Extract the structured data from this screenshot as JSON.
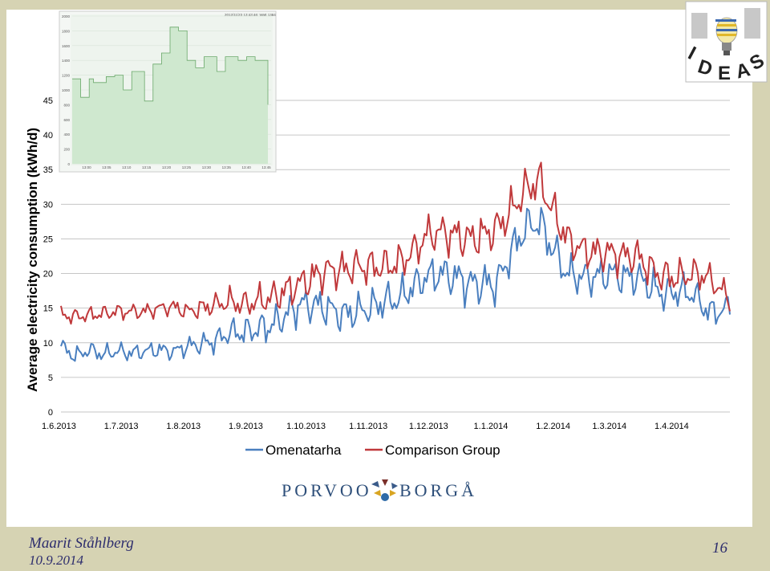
{
  "slide": {
    "author": "Maarit Ståhlberg",
    "date": "10.9.2014",
    "page_number": "16"
  },
  "logos": {
    "porvoo_left": "PORVOO",
    "porvoo_right": "BORGÅ",
    "ideas": "IDEAS"
  },
  "colors": {
    "omenatarha": "#4a7fbf",
    "comparison": "#c0393b",
    "inset_fill": "#cfe8cf",
    "inset_line": "#6aa86a"
  },
  "chart_data": {
    "type": "line",
    "ylabel": "Average electricity consumption (kWh/d)",
    "xlabel": "",
    "ylim": [
      0,
      45
    ],
    "yticks": [
      0,
      5,
      10,
      15,
      20,
      25,
      30,
      35,
      40,
      45
    ],
    "grid": "horizontal",
    "legend_position": "bottom",
    "x_tick_labels": [
      "1.6.2013",
      "1.7.2013",
      "1.8.2013",
      "1.9.2013",
      "1.10.2013",
      "1.11.2013",
      "1.12.2013",
      "1.1.2014",
      "1.2.2014",
      "1.3.2014",
      "1.4.2014"
    ],
    "x_tick_days": [
      0,
      30,
      61,
      92,
      122,
      153,
      183,
      214,
      245,
      273,
      304
    ],
    "x_end_day": 333,
    "series": [
      {
        "name": "Omenatarha",
        "color": "#4a7fbf",
        "points": [
          [
            0,
            9.5
          ],
          [
            7,
            8
          ],
          [
            14,
            9
          ],
          [
            21,
            8.3
          ],
          [
            28,
            8.8
          ],
          [
            35,
            8.5
          ],
          [
            42,
            8.8
          ],
          [
            49,
            9
          ],
          [
            56,
            8.7
          ],
          [
            63,
            9.5
          ],
          [
            70,
            9.8
          ],
          [
            77,
            10.3
          ],
          [
            84,
            11.5
          ],
          [
            91,
            11.5
          ],
          [
            98,
            12
          ],
          [
            105,
            12.5
          ],
          [
            112,
            14
          ],
          [
            119,
            15.5
          ],
          [
            126,
            15.5
          ],
          [
            133,
            15
          ],
          [
            140,
            14
          ],
          [
            147,
            14.5
          ],
          [
            154,
            15
          ],
          [
            161,
            16
          ],
          [
            168,
            16.3
          ],
          [
            175,
            18
          ],
          [
            182,
            19.5
          ],
          [
            189,
            20
          ],
          [
            196,
            19.5
          ],
          [
            203,
            18.5
          ],
          [
            210,
            18.5
          ],
          [
            217,
            18.5
          ],
          [
            224,
            23
          ],
          [
            231,
            26.5
          ],
          [
            238,
            27.5
          ],
          [
            245,
            23.5
          ],
          [
            252,
            20
          ],
          [
            259,
            19.5
          ],
          [
            266,
            19.5
          ],
          [
            273,
            20
          ],
          [
            280,
            19.5
          ],
          [
            287,
            19.5
          ],
          [
            294,
            18
          ],
          [
            301,
            17
          ],
          [
            308,
            17.5
          ],
          [
            315,
            17
          ],
          [
            322,
            14.5
          ],
          [
            329,
            14.5
          ],
          [
            333,
            15.5
          ]
        ],
        "amplitude": [
          1.4,
          1.4,
          1.4,
          1.4,
          1.4,
          1.4,
          1.4,
          1.4,
          1.4,
          1.6,
          1.8,
          2.0,
          2.2,
          2.4,
          2.6,
          2.8,
          3.0,
          3.0,
          3.0,
          3.0,
          3.0,
          3.0,
          3.0,
          3.0,
          3.0,
          3.0,
          3.0,
          3.2,
          3.4,
          3.4,
          3.4,
          3.4,
          3.4,
          3.4,
          3.4,
          3.4,
          3.0,
          3.0,
          3.0,
          3.0,
          3.0,
          3.0,
          3.0,
          3.0,
          2.8,
          2.6,
          2.4,
          2.2,
          2.2
        ]
      },
      {
        "name": "Comparison Group",
        "color": "#c0393b",
        "points": [
          [
            0,
            14
          ],
          [
            7,
            13.8
          ],
          [
            14,
            14
          ],
          [
            21,
            14.2
          ],
          [
            28,
            14.5
          ],
          [
            35,
            14.5
          ],
          [
            42,
            14.5
          ],
          [
            49,
            15
          ],
          [
            56,
            15.2
          ],
          [
            63,
            14.5
          ],
          [
            70,
            15
          ],
          [
            77,
            15.5
          ],
          [
            84,
            16
          ],
          [
            91,
            15.5
          ],
          [
            98,
            16
          ],
          [
            105,
            16.5
          ],
          [
            112,
            17.5
          ],
          [
            119,
            18.5
          ],
          [
            126,
            19.5
          ],
          [
            133,
            20.5
          ],
          [
            140,
            20.5
          ],
          [
            147,
            21
          ],
          [
            154,
            21
          ],
          [
            161,
            21
          ],
          [
            168,
            21.5
          ],
          [
            175,
            23
          ],
          [
            182,
            25.5
          ],
          [
            189,
            26
          ],
          [
            196,
            25.5
          ],
          [
            203,
            25
          ],
          [
            210,
            25.5
          ],
          [
            217,
            26.5
          ],
          [
            224,
            29
          ],
          [
            231,
            32
          ],
          [
            238,
            33.5
          ],
          [
            245,
            29
          ],
          [
            252,
            25
          ],
          [
            259,
            23.5
          ],
          [
            266,
            23
          ],
          [
            273,
            23
          ],
          [
            280,
            22.5
          ],
          [
            287,
            22.5
          ],
          [
            294,
            20.5
          ],
          [
            301,
            19.5
          ],
          [
            308,
            19.5
          ],
          [
            315,
            20
          ],
          [
            322,
            19.5
          ],
          [
            329,
            17.5
          ],
          [
            333,
            16.5
          ]
        ],
        "amplitude": [
          1.3,
          1.3,
          1.3,
          1.3,
          1.3,
          1.3,
          1.3,
          1.3,
          1.3,
          1.5,
          1.7,
          1.9,
          2.1,
          2.3,
          2.5,
          2.7,
          2.9,
          3.0,
          3.0,
          3.0,
          3.0,
          3.0,
          3.0,
          3.0,
          3.0,
          3.0,
          3.0,
          3.2,
          3.4,
          3.4,
          3.4,
          3.4,
          3.4,
          3.4,
          3.4,
          3.4,
          3.0,
          3.0,
          3.0,
          3.0,
          3.0,
          3.0,
          3.0,
          3.0,
          2.8,
          2.6,
          2.4,
          2.2,
          2.2
        ]
      }
    ]
  },
  "inset_chart": {
    "type": "area",
    "yticks": [
      "2000",
      "1800",
      "1600",
      "1400",
      "1200",
      "1000",
      "800",
      "600",
      "400",
      "200",
      "0"
    ],
    "xticks": [
      "13:00",
      "13:05",
      "13:10",
      "13:15",
      "13:20",
      "13:25",
      "13:30",
      "13:35",
      "13:40",
      "13:45"
    ],
    "header_text": "2012/11/23 13:43:46: Watt 1384",
    "ylim": [
      0,
      2000
    ],
    "values": [
      1150,
      1150,
      900,
      900,
      1150,
      1100,
      1100,
      1100,
      1180,
      1180,
      1200,
      1200,
      1000,
      1000,
      1250,
      1250,
      1250,
      850,
      850,
      1350,
      1350,
      1500,
      1500,
      1850,
      1850,
      1800,
      1800,
      1400,
      1400,
      1300,
      1300,
      1450,
      1450,
      1450,
      1250,
      1250,
      1450,
      1450,
      1450,
      1400,
      1400,
      1450,
      1450,
      1400,
      1400,
      1400,
      800
    ]
  }
}
